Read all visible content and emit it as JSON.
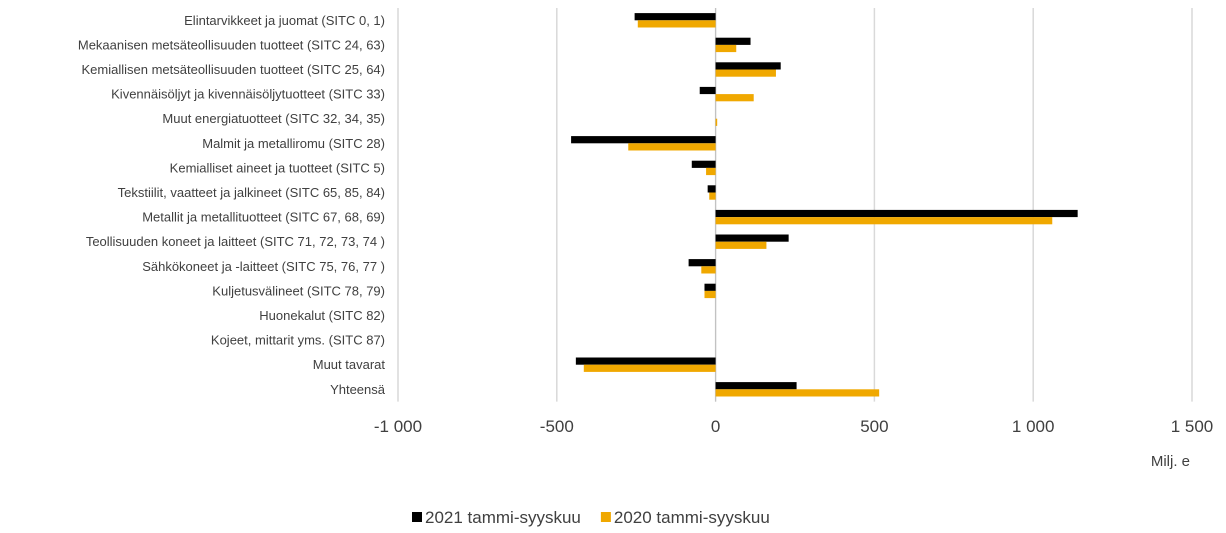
{
  "chart_data": {
    "type": "bar",
    "orientation": "horizontal",
    "categories": [
      "Elintarvikkeet ja juomat (SITC 0, 1)",
      "Mekaanisen metsäteollisuuden tuotteet (SITC 24, 63)",
      "Kemiallisen metsäteollisuuden tuotteet (SITC 25, 64)",
      "Kivennäisöljyt ja kivennäisöljytuotteet (SITC 33)",
      "Muut energiatuotteet (SITC 32, 34, 35)",
      "Malmit ja metalliromu (SITC 28)",
      "Kemialliset aineet ja tuotteet (SITC 5)",
      "Tekstiilit, vaatteet ja jalkineet (SITC 65, 85, 84)",
      "Metallit ja metallituotteet (SITC 67, 68, 69)",
      "Teollisuuden koneet ja laitteet (SITC 71, 72, 73, 74 )",
      "Sähkökoneet ja -laitteet (SITC 75, 76, 77 )",
      "Kuljetusvälineet (SITC 78, 79)",
      "Huonekalut (SITC 82)",
      "Kojeet, mittarit yms. (SITC 87)",
      "Muut tavarat",
      "Yhteensä"
    ],
    "series": [
      {
        "name": "2021 tammi-syyskuu",
        "color": "#000000",
        "values": [
          -255,
          110,
          205,
          -50,
          0,
          -455,
          -75,
          -25,
          1140,
          230,
          -85,
          -35,
          0,
          0,
          -440,
          255
        ]
      },
      {
        "name": "2020 tammi-syyskuu",
        "color": "#F0A800",
        "values": [
          -245,
          65,
          190,
          120,
          5,
          -275,
          -30,
          -20,
          1060,
          160,
          -45,
          -35,
          0,
          0,
          -415,
          515
        ]
      }
    ],
    "xlim": [
      -1000,
      1500
    ],
    "xticks": [
      -1000,
      -500,
      0,
      500,
      1000,
      1500
    ],
    "xtick_labels": [
      "-1 000",
      "-500",
      "0",
      "500",
      "1 000",
      "1 500"
    ],
    "xlabel": "Milj. e",
    "grid": "vertical",
    "legend_position": "bottom"
  }
}
